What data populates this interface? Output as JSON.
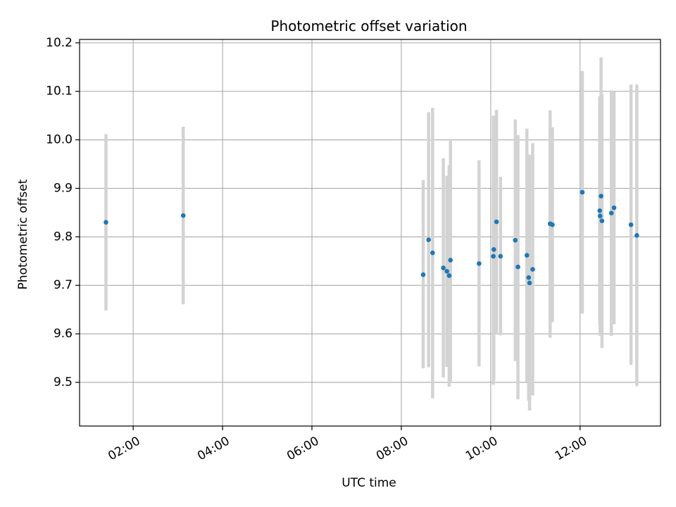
{
  "chart_data": {
    "type": "scatter",
    "title": "Photometric offset variation",
    "xlabel": "UTC time",
    "ylabel": "Photometric offset",
    "x_unit": "hours",
    "xlim": [
      0.8,
      13.8
    ],
    "ylim": [
      9.41,
      10.207
    ],
    "x_ticks": [
      {
        "value": 2,
        "label": "02:00"
      },
      {
        "value": 4,
        "label": "04:00"
      },
      {
        "value": 6,
        "label": "06:00"
      },
      {
        "value": 8,
        "label": "08:00"
      },
      {
        "value": 10,
        "label": "10:00"
      },
      {
        "value": 12,
        "label": "12:00"
      }
    ],
    "y_ticks": [
      {
        "value": 9.5,
        "label": "9.5"
      },
      {
        "value": 9.6,
        "label": "9.6"
      },
      {
        "value": 9.7,
        "label": "9.7"
      },
      {
        "value": 9.8,
        "label": "9.8"
      },
      {
        "value": 9.9,
        "label": "9.9"
      },
      {
        "value": 10.0,
        "label": "10.0"
      },
      {
        "value": 10.1,
        "label": "10.1"
      },
      {
        "value": 10.2,
        "label": "10.2"
      }
    ],
    "grid": true,
    "point_color": "#1f77b4",
    "errorbar_color": "#d3d3d3",
    "points": [
      {
        "x": 1.39,
        "y": 9.83,
        "lo": 9.648,
        "hi": 10.012
      },
      {
        "x": 3.12,
        "y": 9.844,
        "lo": 9.661,
        "hi": 10.027
      },
      {
        "x": 8.49,
        "y": 9.722,
        "lo": 9.529,
        "hi": 9.917
      },
      {
        "x": 8.61,
        "y": 9.794,
        "lo": 9.531,
        "hi": 10.057
      },
      {
        "x": 8.7,
        "y": 9.767,
        "lo": 9.467,
        "hi": 10.066
      },
      {
        "x": 8.94,
        "y": 9.736,
        "lo": 9.51,
        "hi": 9.962
      },
      {
        "x": 9.02,
        "y": 9.729,
        "lo": 9.532,
        "hi": 9.926
      },
      {
        "x": 9.07,
        "y": 9.72,
        "lo": 9.491,
        "hi": 9.948
      },
      {
        "x": 9.1,
        "y": 9.752,
        "lo": 9.502,
        "hi": 10.002
      },
      {
        "x": 9.74,
        "y": 9.745,
        "lo": 9.533,
        "hi": 9.958
      },
      {
        "x": 10.06,
        "y": 9.76,
        "lo": 9.495,
        "hi": 10.05
      },
      {
        "x": 10.07,
        "y": 9.774,
        "lo": 9.505,
        "hi": 10.04
      },
      {
        "x": 10.13,
        "y": 9.831,
        "lo": 9.6,
        "hi": 10.062
      },
      {
        "x": 10.22,
        "y": 9.76,
        "lo": 9.597,
        "hi": 9.924
      },
      {
        "x": 10.55,
        "y": 9.793,
        "lo": 9.544,
        "hi": 10.042
      },
      {
        "x": 10.61,
        "y": 9.738,
        "lo": 9.465,
        "hi": 10.01
      },
      {
        "x": 10.81,
        "y": 9.762,
        "lo": 9.501,
        "hi": 10.023
      },
      {
        "x": 10.85,
        "y": 9.716,
        "lo": 9.462,
        "hi": 9.97
      },
      {
        "x": 10.87,
        "y": 9.705,
        "lo": 9.442,
        "hi": 9.968
      },
      {
        "x": 10.94,
        "y": 9.733,
        "lo": 9.473,
        "hi": 9.993
      },
      {
        "x": 11.33,
        "y": 9.827,
        "lo": 9.592,
        "hi": 10.061
      },
      {
        "x": 11.38,
        "y": 9.825,
        "lo": 9.624,
        "hi": 10.026
      },
      {
        "x": 12.05,
        "y": 9.892,
        "lo": 9.642,
        "hi": 10.142
      },
      {
        "x": 12.44,
        "y": 9.854,
        "lo": 9.618,
        "hi": 10.09
      },
      {
        "x": 12.45,
        "y": 9.843,
        "lo": 9.596,
        "hi": 10.09
      },
      {
        "x": 12.47,
        "y": 9.884,
        "lo": 9.598,
        "hi": 10.17
      },
      {
        "x": 12.49,
        "y": 9.833,
        "lo": 9.571,
        "hi": 10.095
      },
      {
        "x": 12.7,
        "y": 9.849,
        "lo": 9.596,
        "hi": 10.102
      },
      {
        "x": 12.76,
        "y": 9.86,
        "lo": 9.62,
        "hi": 10.1
      },
      {
        "x": 13.14,
        "y": 9.825,
        "lo": 9.536,
        "hi": 10.114
      },
      {
        "x": 13.27,
        "y": 9.803,
        "lo": 9.492,
        "hi": 10.114
      }
    ]
  }
}
